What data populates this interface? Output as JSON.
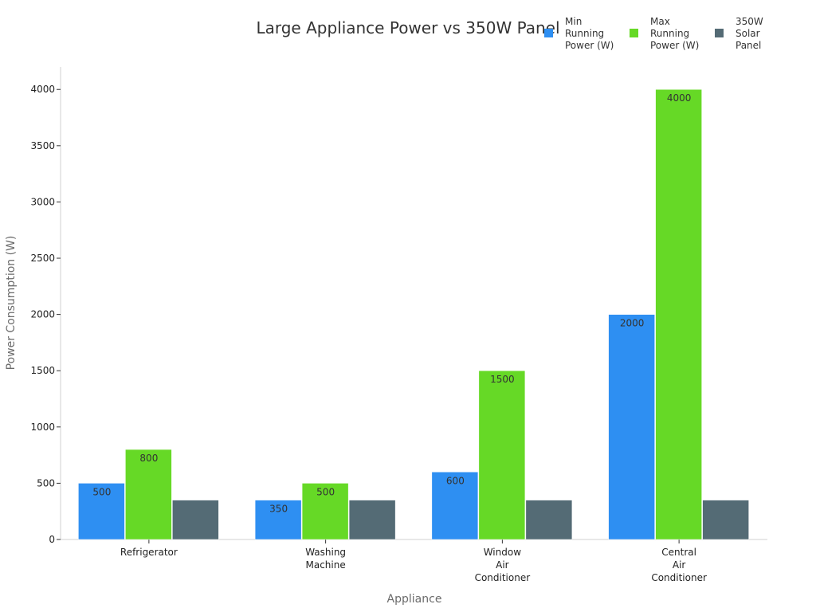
{
  "chart_data": {
    "type": "bar",
    "title": "Large Appliance Power vs 350W Panel",
    "xlabel": "Appliance",
    "ylabel": "Power Consumption (W)",
    "categories": [
      [
        "Refrigerator"
      ],
      [
        "Washing",
        "Machine"
      ],
      [
        "Window",
        "Air",
        "Conditioner"
      ],
      [
        "Central",
        "Air",
        "Conditioner"
      ]
    ],
    "series": [
      {
        "name": [
          "Min",
          "Running",
          "Power (W)"
        ],
        "color": "#2e8ff2",
        "values": [
          500,
          350,
          600,
          2000
        ],
        "show_labels": true
      },
      {
        "name": [
          "Max",
          "Running",
          "Power (W)"
        ],
        "color": "#66d926",
        "values": [
          800,
          500,
          1500,
          4000
        ],
        "show_labels": true
      },
      {
        "name": [
          "350W",
          "Solar",
          "Panel"
        ],
        "color": "#546b75",
        "values": [
          350,
          350,
          350,
          350
        ],
        "show_labels": false
      }
    ],
    "ylim": [
      0,
      4200
    ],
    "yticks": [
      0,
      500,
      1000,
      1500,
      2000,
      2500,
      3000,
      3500,
      4000
    ],
    "grid": false,
    "legend_position": "top-right"
  }
}
